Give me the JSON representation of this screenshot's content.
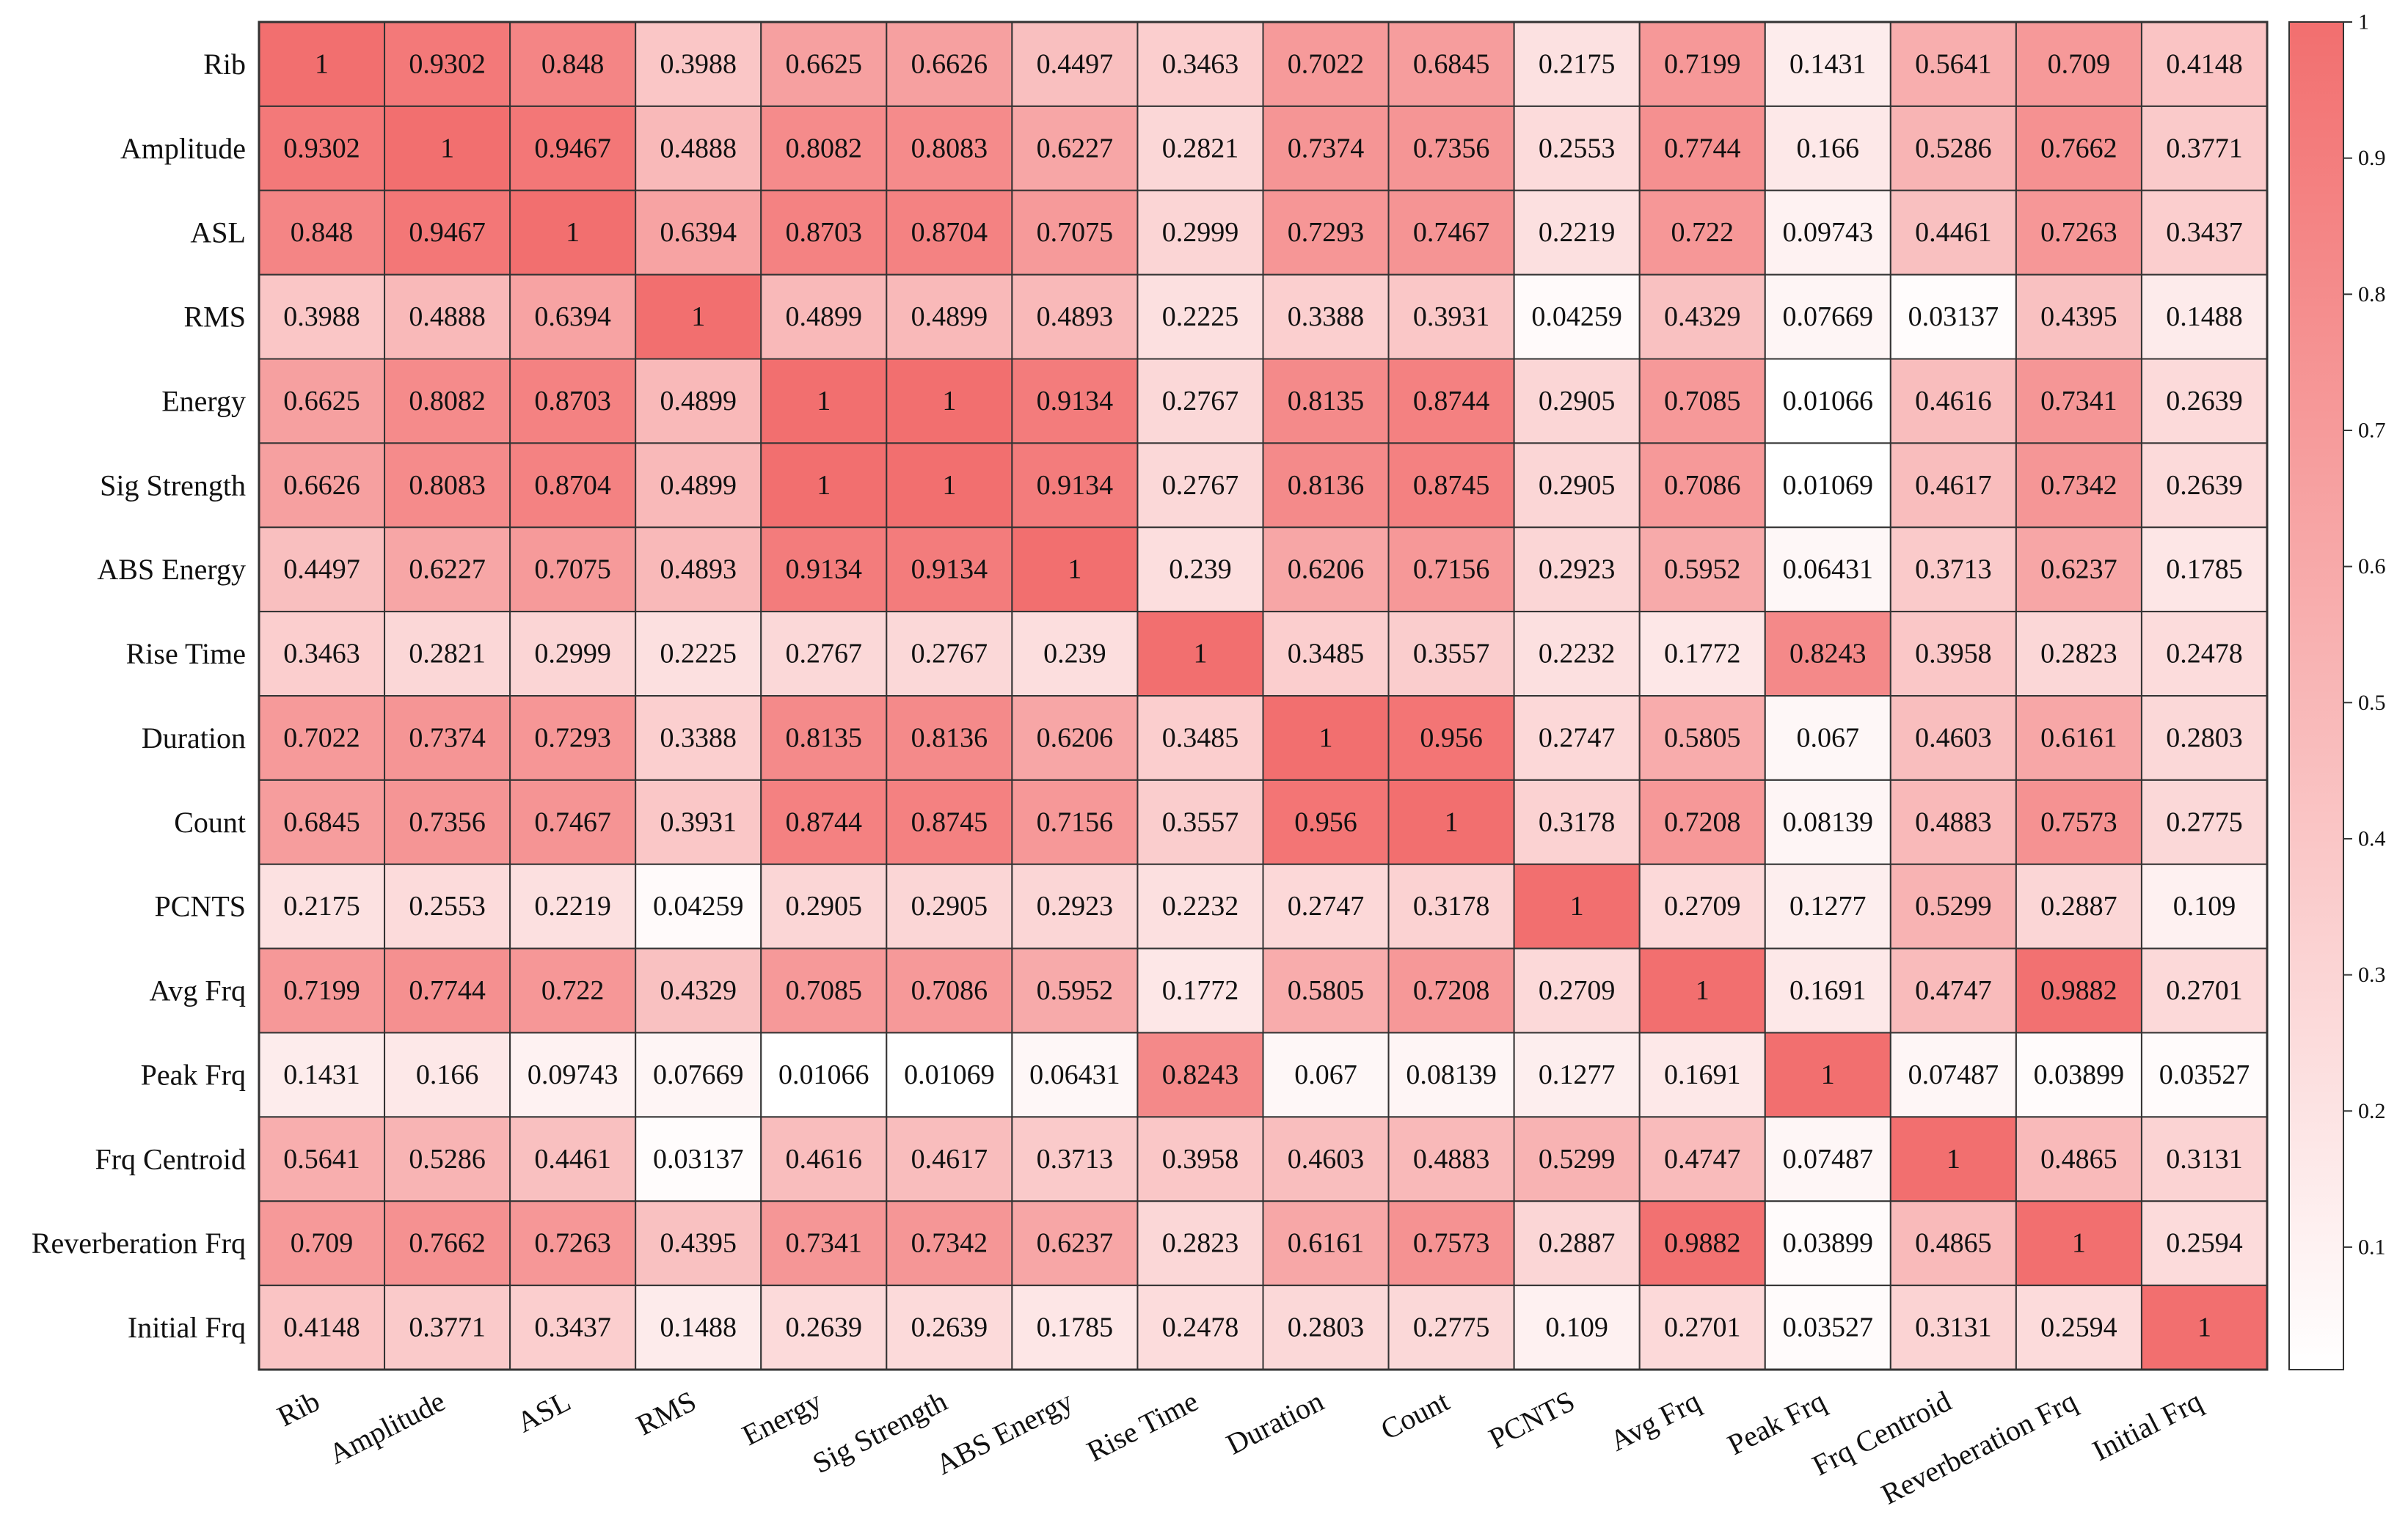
{
  "chart_data": {
    "type": "heatmap",
    "title": "",
    "xlabel": "",
    "ylabel": "",
    "labels": [
      "Rib",
      "Amplitude",
      "ASL",
      "RMS",
      "Energy",
      "Sig Strength",
      "ABS Energy",
      "Rise Time",
      "Duration",
      "Count",
      "PCNTS",
      "Avg Frq",
      "Peak Frq",
      "Frq Centroid",
      "Reverberation Frq",
      "Initial Frq"
    ],
    "values": [
      [
        "1",
        "0.9302",
        "0.848",
        "0.3988",
        "0.6625",
        "0.6626",
        "0.4497",
        "0.3463",
        "0.7022",
        "0.6845",
        "0.2175",
        "0.7199",
        "0.1431",
        "0.5641",
        "0.709",
        "0.4148"
      ],
      [
        "0.9302",
        "1",
        "0.9467",
        "0.4888",
        "0.8082",
        "0.8083",
        "0.6227",
        "0.2821",
        "0.7374",
        "0.7356",
        "0.2553",
        "0.7744",
        "0.166",
        "0.5286",
        "0.7662",
        "0.3771"
      ],
      [
        "0.848",
        "0.9467",
        "1",
        "0.6394",
        "0.8703",
        "0.8704",
        "0.7075",
        "0.2999",
        "0.7293",
        "0.7467",
        "0.2219",
        "0.722",
        "0.09743",
        "0.4461",
        "0.7263",
        "0.3437"
      ],
      [
        "0.3988",
        "0.4888",
        "0.6394",
        "1",
        "0.4899",
        "0.4899",
        "0.4893",
        "0.2225",
        "0.3388",
        "0.3931",
        "0.04259",
        "0.4329",
        "0.07669",
        "0.03137",
        "0.4395",
        "0.1488"
      ],
      [
        "0.6625",
        "0.8082",
        "0.8703",
        "0.4899",
        "1",
        "1",
        "0.9134",
        "0.2767",
        "0.8135",
        "0.8744",
        "0.2905",
        "0.7085",
        "0.01066",
        "0.4616",
        "0.7341",
        "0.2639"
      ],
      [
        "0.6626",
        "0.8083",
        "0.8704",
        "0.4899",
        "1",
        "1",
        "0.9134",
        "0.2767",
        "0.8136",
        "0.8745",
        "0.2905",
        "0.7086",
        "0.01069",
        "0.4617",
        "0.7342",
        "0.2639"
      ],
      [
        "0.4497",
        "0.6227",
        "0.7075",
        "0.4893",
        "0.9134",
        "0.9134",
        "1",
        "0.239",
        "0.6206",
        "0.7156",
        "0.2923",
        "0.5952",
        "0.06431",
        "0.3713",
        "0.6237",
        "0.1785"
      ],
      [
        "0.3463",
        "0.2821",
        "0.2999",
        "0.2225",
        "0.2767",
        "0.2767",
        "0.239",
        "1",
        "0.3485",
        "0.3557",
        "0.2232",
        "0.1772",
        "0.8243",
        "0.3958",
        "0.2823",
        "0.2478"
      ],
      [
        "0.7022",
        "0.7374",
        "0.7293",
        "0.3388",
        "0.8135",
        "0.8136",
        "0.6206",
        "0.3485",
        "1",
        "0.956",
        "0.2747",
        "0.5805",
        "0.067",
        "0.4603",
        "0.6161",
        "0.2803"
      ],
      [
        "0.6845",
        "0.7356",
        "0.7467",
        "0.3931",
        "0.8744",
        "0.8745",
        "0.7156",
        "0.3557",
        "0.956",
        "1",
        "0.3178",
        "0.7208",
        "0.08139",
        "0.4883",
        "0.7573",
        "0.2775"
      ],
      [
        "0.2175",
        "0.2553",
        "0.2219",
        "0.04259",
        "0.2905",
        "0.2905",
        "0.2923",
        "0.2232",
        "0.2747",
        "0.3178",
        "1",
        "0.2709",
        "0.1277",
        "0.5299",
        "0.2887",
        "0.109"
      ],
      [
        "0.7199",
        "0.7744",
        "0.722",
        "0.4329",
        "0.7085",
        "0.7086",
        "0.5952",
        "0.1772",
        "0.5805",
        "0.7208",
        "0.2709",
        "1",
        "0.1691",
        "0.4747",
        "0.9882",
        "0.2701"
      ],
      [
        "0.1431",
        "0.166",
        "0.09743",
        "0.07669",
        "0.01066",
        "0.01069",
        "0.06431",
        "0.8243",
        "0.067",
        "0.08139",
        "0.1277",
        "0.1691",
        "1",
        "0.07487",
        "0.03899",
        "0.03527"
      ],
      [
        "0.5641",
        "0.5286",
        "0.4461",
        "0.03137",
        "0.4616",
        "0.4617",
        "0.3713",
        "0.3958",
        "0.4603",
        "0.4883",
        "0.5299",
        "0.4747",
        "0.07487",
        "1",
        "0.4865",
        "0.3131"
      ],
      [
        "0.709",
        "0.7662",
        "0.7263",
        "0.4395",
        "0.7341",
        "0.7342",
        "0.6237",
        "0.2823",
        "0.6161",
        "0.7573",
        "0.2887",
        "0.9882",
        "0.03899",
        "0.4865",
        "1",
        "0.2594"
      ],
      [
        "0.4148",
        "0.3771",
        "0.3437",
        "0.1488",
        "0.2639",
        "0.2639",
        "0.1785",
        "0.2478",
        "0.2803",
        "0.2775",
        "0.109",
        "0.2701",
        "0.03527",
        "0.3131",
        "0.2594",
        "1"
      ]
    ],
    "colorbar": {
      "range": [
        0.01,
        1
      ],
      "ticks": [
        "0.1",
        "0.2",
        "0.3",
        "0.4",
        "0.5",
        "0.6",
        "0.7",
        "0.8",
        "0.9",
        "1"
      ],
      "color_low": "#ffffff",
      "color_high": "#f26f6f"
    },
    "grid": true,
    "legend": "right"
  }
}
